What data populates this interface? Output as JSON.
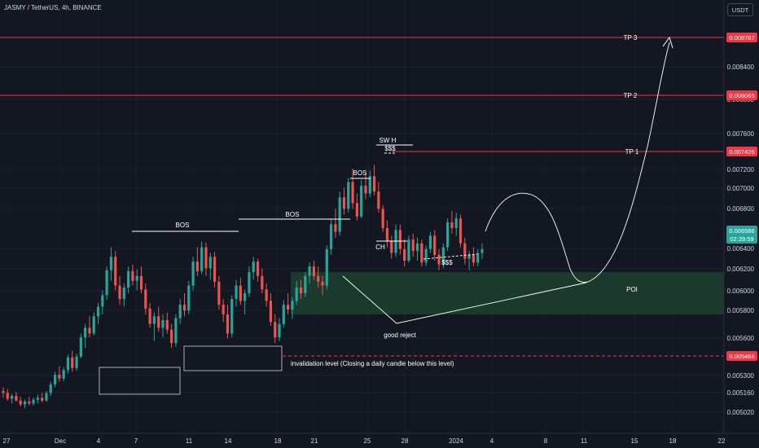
{
  "header": {
    "symbol_title": "JASMY / TetherUS, 4h, BINANCE",
    "currency_button": "USDT"
  },
  "colors": {
    "bg": "#131722",
    "up": "#26a69a",
    "down": "#ef5350",
    "level_line": "#f23645",
    "poi_fill": "#1e3d2f",
    "annotation": "#ffffff"
  },
  "chart_data": {
    "type": "candlestick",
    "title": "JASMY / TetherUS, 4h, BINANCE",
    "x_ticks": [
      "27",
      "Dec",
      "4",
      "7",
      "11",
      "14",
      "18",
      "21",
      "25",
      "28",
      "2024",
      "4",
      "8",
      "11",
      "15",
      "18",
      "22"
    ],
    "y_ticks": [
      "0.008400",
      "0.008000",
      "0.007600",
      "0.007200",
      "0.007000",
      "0.006800",
      "0.006400",
      "0.006200",
      "0.006000",
      "0.005800",
      "0.005600",
      "0.005300",
      "0.005160",
      "0.005020"
    ],
    "price_labels": [
      {
        "value": "0.008787",
        "kind": "level"
      },
      {
        "value": "0.008065",
        "kind": "level"
      },
      {
        "value": "0.007426",
        "kind": "level"
      },
      {
        "value": "0.006586",
        "kind": "last",
        "countdown": "02:29:59"
      },
      {
        "value": "0.005466",
        "kind": "level"
      }
    ],
    "horizontal_levels": [
      {
        "label": "TP 3",
        "price": 0.008787
      },
      {
        "label": "TP 2",
        "price": 0.008065
      },
      {
        "label": "TP 1",
        "price": 0.007426
      },
      {
        "label": "invalidation level (Closing a daily candle below this level)",
        "price": 0.005466,
        "style": "dashed"
      }
    ],
    "zones": [
      {
        "label": "POI",
        "from": 0.00583,
        "to": 0.00622
      }
    ],
    "annotations": [
      "BOS",
      "BOS",
      "BOS",
      "SW H",
      "$$$",
      "$$$",
      "CH",
      "good reject"
    ],
    "ylim": [
      0.00495,
      0.00905
    ],
    "candles_ohlc_approx": [
      [
        0.0051,
        0.00514,
        0.00503,
        0.00508
      ],
      [
        0.00508,
        0.00512,
        0.005,
        0.00502
      ],
      [
        0.00502,
        0.00507,
        0.00497,
        0.00505
      ],
      [
        0.00505,
        0.00509,
        0.00499,
        0.005
      ],
      [
        0.005,
        0.00504,
        0.00494,
        0.00496
      ],
      [
        0.00496,
        0.00501,
        0.00492,
        0.00499
      ],
      [
        0.00499,
        0.00504,
        0.00495,
        0.00497
      ],
      [
        0.00497,
        0.00503,
        0.00495,
        0.00501
      ],
      [
        0.00501,
        0.00506,
        0.00497,
        0.00503
      ],
      [
        0.00503,
        0.00508,
        0.00498,
        0.005
      ],
      [
        0.005,
        0.0051,
        0.00499,
        0.00508
      ],
      [
        0.00508,
        0.0052,
        0.00505,
        0.00517
      ],
      [
        0.00517,
        0.0053,
        0.00514,
        0.00527
      ],
      [
        0.00527,
        0.00536,
        0.0052,
        0.00523
      ],
      [
        0.00523,
        0.00535,
        0.0052,
        0.00532
      ],
      [
        0.00532,
        0.00548,
        0.00528,
        0.00545
      ],
      [
        0.00545,
        0.00552,
        0.0053,
        0.00534
      ],
      [
        0.00534,
        0.00549,
        0.00531,
        0.00546
      ],
      [
        0.00546,
        0.0057,
        0.00544,
        0.00566
      ],
      [
        0.00566,
        0.0058,
        0.00555,
        0.00576
      ],
      [
        0.00576,
        0.00588,
        0.00566,
        0.0057
      ],
      [
        0.0057,
        0.00592,
        0.00568,
        0.00588
      ],
      [
        0.00588,
        0.00602,
        0.0058,
        0.00598
      ],
      [
        0.00598,
        0.00615,
        0.0059,
        0.0061
      ],
      [
        0.0061,
        0.0064,
        0.00605,
        0.00636
      ],
      [
        0.00636,
        0.0066,
        0.00625,
        0.0065
      ],
      [
        0.0065,
        0.00656,
        0.00615,
        0.0062
      ],
      [
        0.0062,
        0.0063,
        0.006,
        0.00606
      ],
      [
        0.00606,
        0.00622,
        0.00598,
        0.00618
      ],
      [
        0.00618,
        0.0064,
        0.00612,
        0.00635
      ],
      [
        0.00635,
        0.00642,
        0.0062,
        0.00625
      ],
      [
        0.00625,
        0.00637,
        0.00615,
        0.0063
      ],
      [
        0.0063,
        0.0064,
        0.00612,
        0.00616
      ],
      [
        0.00616,
        0.00622,
        0.0059,
        0.00596
      ],
      [
        0.00596,
        0.00602,
        0.00576,
        0.0058
      ],
      [
        0.0058,
        0.00592,
        0.00562,
        0.00588
      ],
      [
        0.00588,
        0.00598,
        0.00572,
        0.00576
      ],
      [
        0.00576,
        0.0059,
        0.00566,
        0.00584
      ],
      [
        0.00584,
        0.00592,
        0.0057,
        0.00574
      ],
      [
        0.00574,
        0.0058,
        0.00555,
        0.0056
      ],
      [
        0.0056,
        0.0059,
        0.00556,
        0.00586
      ],
      [
        0.00586,
        0.00606,
        0.0058,
        0.006
      ],
      [
        0.006,
        0.00612,
        0.00588,
        0.00594
      ],
      [
        0.00594,
        0.00625,
        0.0059,
        0.0062
      ],
      [
        0.0062,
        0.0065,
        0.00615,
        0.00645
      ],
      [
        0.00645,
        0.0066,
        0.0063,
        0.00635
      ],
      [
        0.00635,
        0.00666,
        0.00632,
        0.0066
      ],
      [
        0.0066,
        0.00665,
        0.0063,
        0.00638
      ],
      [
        0.00638,
        0.00654,
        0.00626,
        0.0065
      ],
      [
        0.0065,
        0.00655,
        0.00618,
        0.00624
      ],
      [
        0.00624,
        0.0063,
        0.00595,
        0.006
      ],
      [
        0.006,
        0.00606,
        0.00582,
        0.0059
      ],
      [
        0.0059,
        0.006,
        0.00565,
        0.0057
      ],
      [
        0.0057,
        0.0061,
        0.00566,
        0.00606
      ],
      [
        0.00606,
        0.00626,
        0.00598,
        0.0062
      ],
      [
        0.0062,
        0.00628,
        0.006,
        0.00604
      ],
      [
        0.00604,
        0.00616,
        0.0059,
        0.00612
      ],
      [
        0.00612,
        0.0064,
        0.00608,
        0.00634
      ],
      [
        0.00634,
        0.0065,
        0.00626,
        0.00645
      ],
      [
        0.00645,
        0.00648,
        0.00624,
        0.0063
      ],
      [
        0.0063,
        0.00638,
        0.00612,
        0.00616
      ],
      [
        0.00616,
        0.00622,
        0.00598,
        0.00604
      ],
      [
        0.00604,
        0.00612,
        0.00578,
        0.00582
      ],
      [
        0.00582,
        0.0059,
        0.0056,
        0.00566
      ],
      [
        0.00566,
        0.00586,
        0.00562,
        0.0058
      ],
      [
        0.0058,
        0.00605,
        0.00576,
        0.006
      ],
      [
        0.006,
        0.00612,
        0.0059,
        0.00595
      ],
      [
        0.00595,
        0.00608,
        0.00585,
        0.00604
      ],
      [
        0.00604,
        0.00625,
        0.006,
        0.00618
      ],
      [
        0.00618,
        0.00626,
        0.00606,
        0.00612
      ],
      [
        0.00612,
        0.00634,
        0.00608,
        0.0063
      ],
      [
        0.0063,
        0.00644,
        0.00622,
        0.0064
      ],
      [
        0.0064,
        0.00646,
        0.00626,
        0.0063
      ],
      [
        0.0063,
        0.0064,
        0.00618,
        0.00624
      ],
      [
        0.00624,
        0.0063,
        0.0061,
        0.0062
      ],
      [
        0.0062,
        0.00662,
        0.00616,
        0.00658
      ],
      [
        0.00658,
        0.0069,
        0.00652,
        0.00684
      ],
      [
        0.00684,
        0.007,
        0.0067,
        0.00676
      ],
      [
        0.00676,
        0.00718,
        0.00672,
        0.00712
      ],
      [
        0.00712,
        0.00722,
        0.00694,
        0.007
      ],
      [
        0.007,
        0.00732,
        0.00696,
        0.00728
      ],
      [
        0.00728,
        0.00742,
        0.007,
        0.00706
      ],
      [
        0.00706,
        0.00716,
        0.00688,
        0.00692
      ],
      [
        0.00692,
        0.0073,
        0.0069,
        0.00724
      ],
      [
        0.00724,
        0.00738,
        0.0071,
        0.00716
      ],
      [
        0.00716,
        0.0074,
        0.00712,
        0.00734
      ],
      [
        0.00734,
        0.00746,
        0.00714,
        0.00718
      ],
      [
        0.00718,
        0.00728,
        0.00696,
        0.007
      ],
      [
        0.007,
        0.00704,
        0.00676,
        0.0068
      ],
      [
        0.0068,
        0.00688,
        0.0066,
        0.00666
      ],
      [
        0.00666,
        0.00672,
        0.00648,
        0.00654
      ],
      [
        0.00654,
        0.00684,
        0.0065,
        0.00678
      ],
      [
        0.00678,
        0.00684,
        0.00652,
        0.00658
      ],
      [
        0.00658,
        0.00668,
        0.0064,
        0.00646
      ],
      [
        0.00646,
        0.00672,
        0.00644,
        0.00668
      ],
      [
        0.00668,
        0.00674,
        0.0065,
        0.00656
      ],
      [
        0.00656,
        0.0067,
        0.00646,
        0.00664
      ],
      [
        0.00664,
        0.00668,
        0.0064,
        0.00644
      ],
      [
        0.00644,
        0.00662,
        0.0064,
        0.00658
      ],
      [
        0.00658,
        0.00676,
        0.00654,
        0.00672
      ],
      [
        0.00672,
        0.00678,
        0.00646,
        0.00652
      ],
      [
        0.00652,
        0.00658,
        0.00636,
        0.00642
      ],
      [
        0.00642,
        0.00664,
        0.00638,
        0.0066
      ],
      [
        0.0066,
        0.0069,
        0.00656,
        0.00686
      ],
      [
        0.00686,
        0.00698,
        0.00674,
        0.0068
      ],
      [
        0.0068,
        0.00696,
        0.00672,
        0.0069
      ],
      [
        0.0069,
        0.00694,
        0.0066,
        0.00664
      ],
      [
        0.00664,
        0.0067,
        0.00642,
        0.00648
      ],
      [
        0.00648,
        0.00656,
        0.00636,
        0.00652
      ],
      [
        0.00652,
        0.0066,
        0.0064,
        0.00644
      ],
      [
        0.00644,
        0.00658,
        0.0064,
        0.00654
      ],
      [
        0.00654,
        0.00664,
        0.00648,
        0.00658
      ]
    ]
  }
}
